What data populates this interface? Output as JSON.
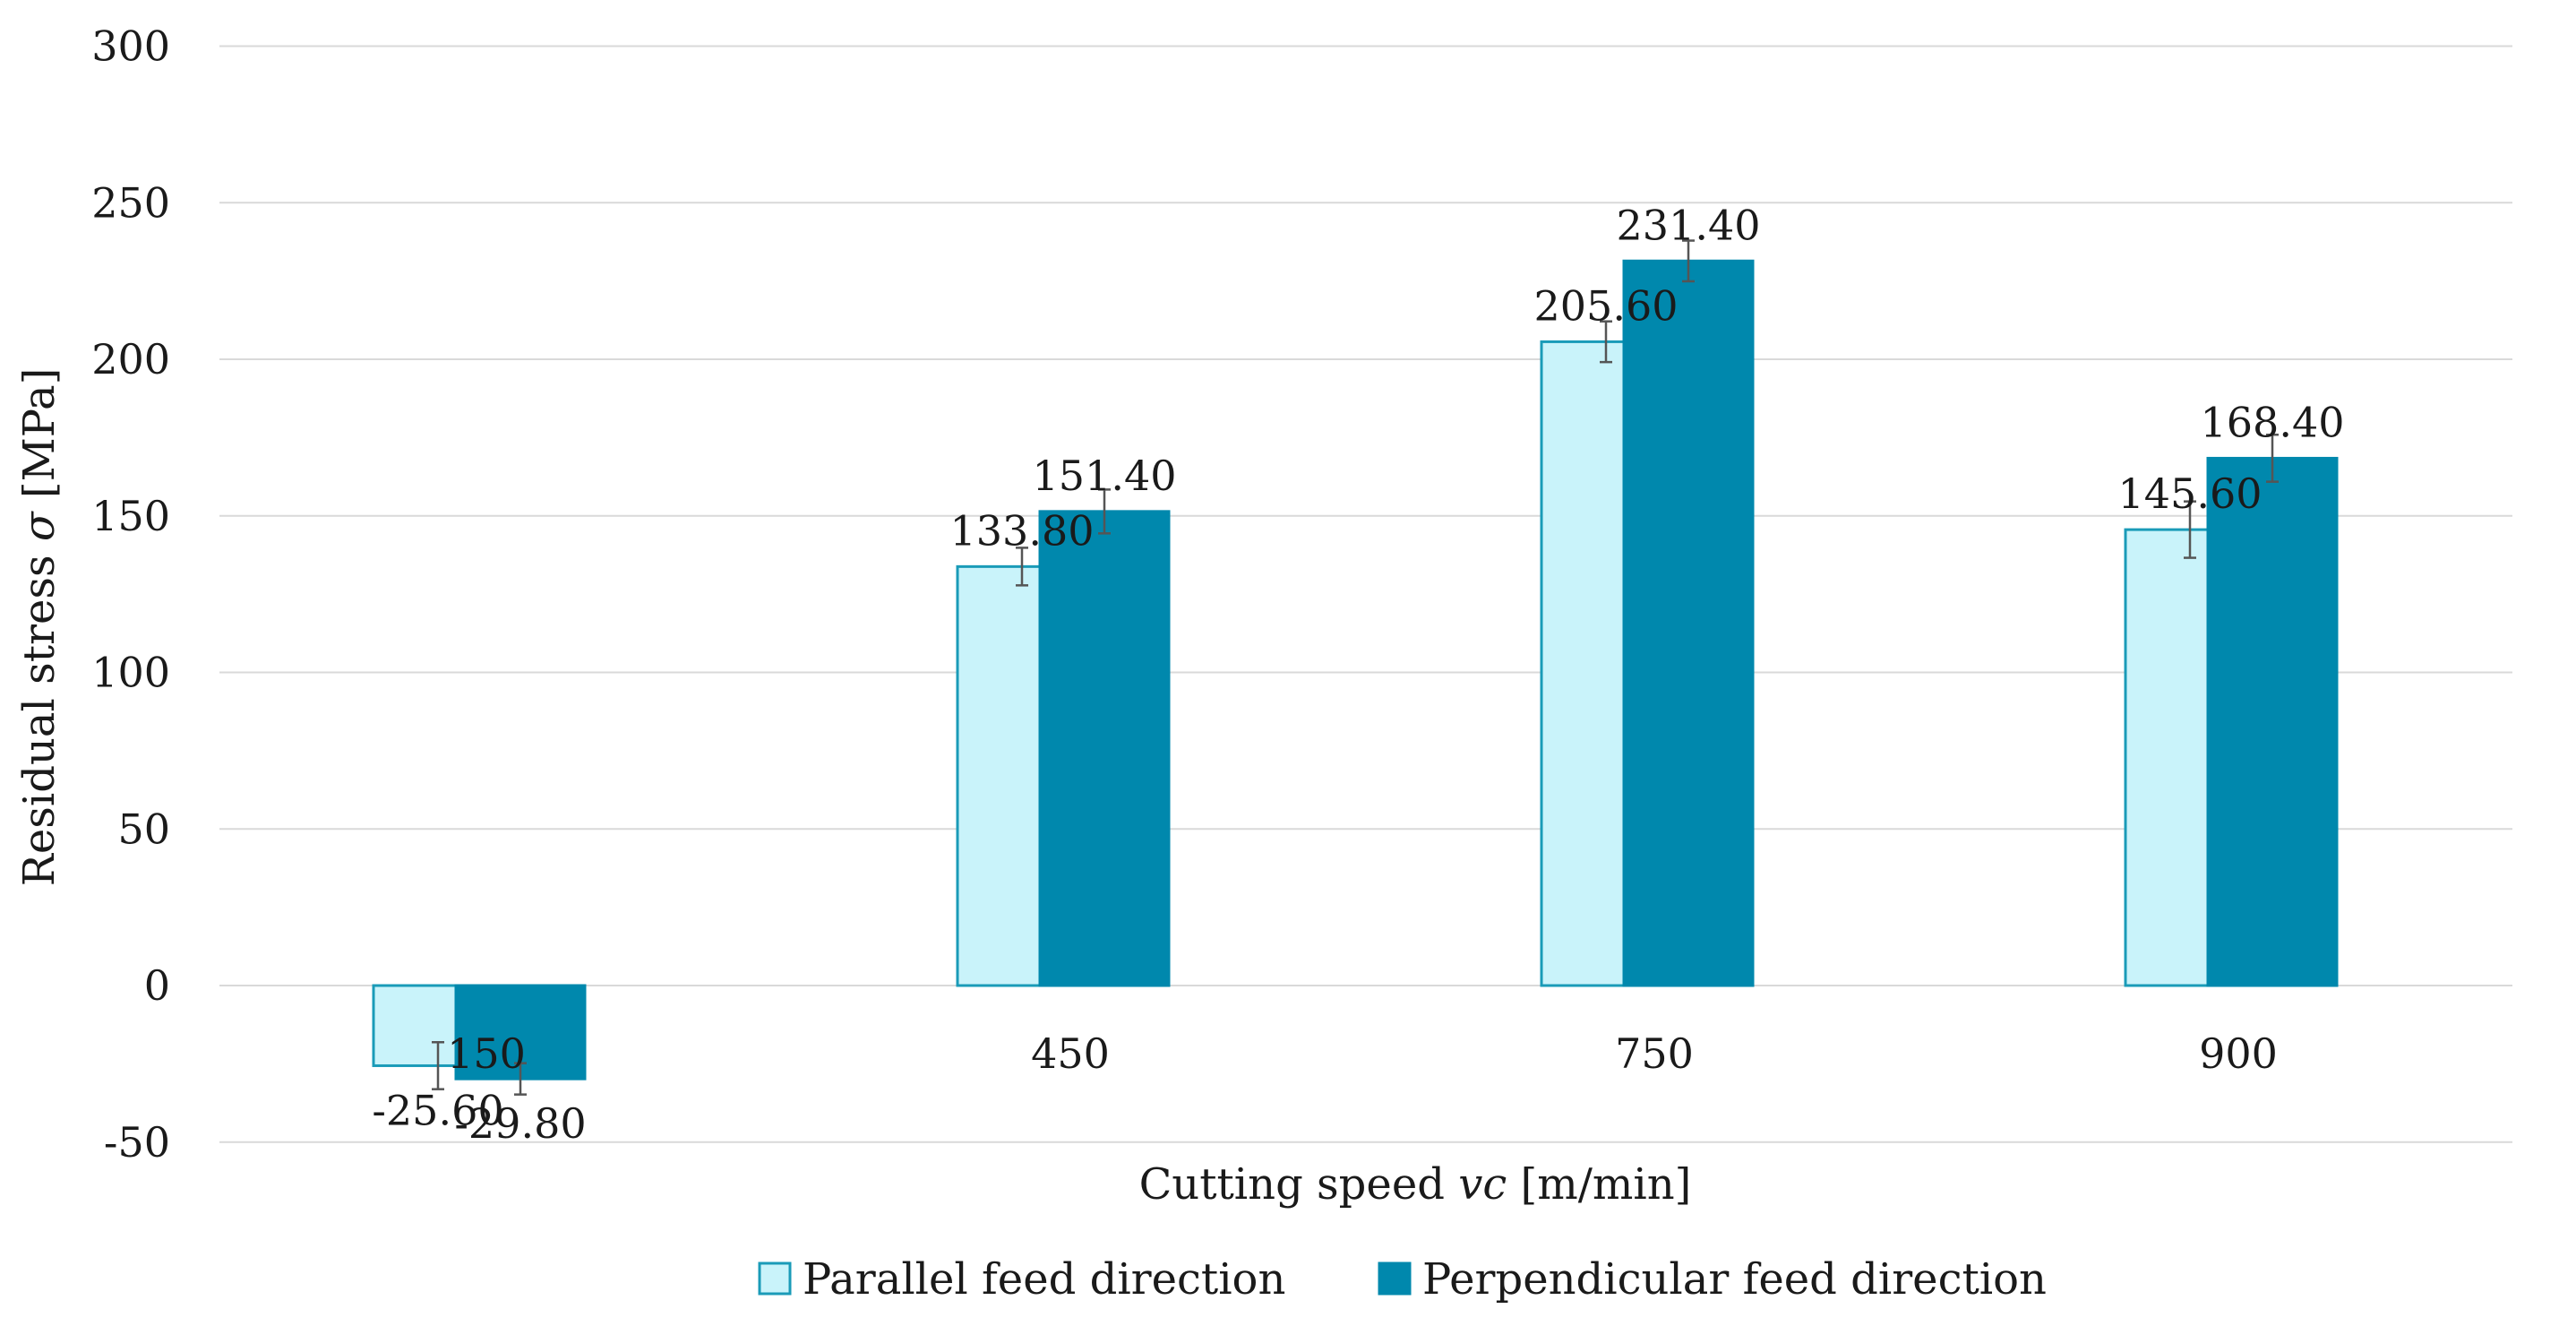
{
  "chart_data": {
    "type": "bar",
    "title": "",
    "xlabel": "Cutting speed",
    "xlabel_symbol": "vc",
    "xlabel_unit": "[m/min]",
    "ylabel": "Residual stress",
    "ylabel_symbol": "σ",
    "ylabel_unit": "[MPa]",
    "ylim": [
      -50,
      300
    ],
    "yticks": [
      -50,
      0,
      50,
      100,
      150,
      200,
      250,
      300
    ],
    "grid": true,
    "legend_position": "bottom",
    "categories": [
      "150",
      "450",
      "750",
      "900"
    ],
    "series": [
      {
        "name": "Parallel feed direction",
        "fill": "#c9f3fa",
        "stroke": "#1a9bb8",
        "values": [
          -25.6,
          133.8,
          205.6,
          145.6
        ],
        "labels": [
          "-25.60",
          "133.80",
          "205.60",
          "145.60"
        ],
        "errors": [
          7.5,
          6,
          6.5,
          9
        ]
      },
      {
        "name": "Perpendicular feed direction",
        "fill": "#0088ad",
        "stroke": "#0088ad",
        "values": [
          -29.8,
          151.4,
          231.4,
          168.4
        ],
        "labels": [
          "-29.80",
          "151.40",
          "231.40",
          "168.40"
        ],
        "errors": [
          5,
          7,
          6.5,
          7.5
        ]
      }
    ]
  }
}
